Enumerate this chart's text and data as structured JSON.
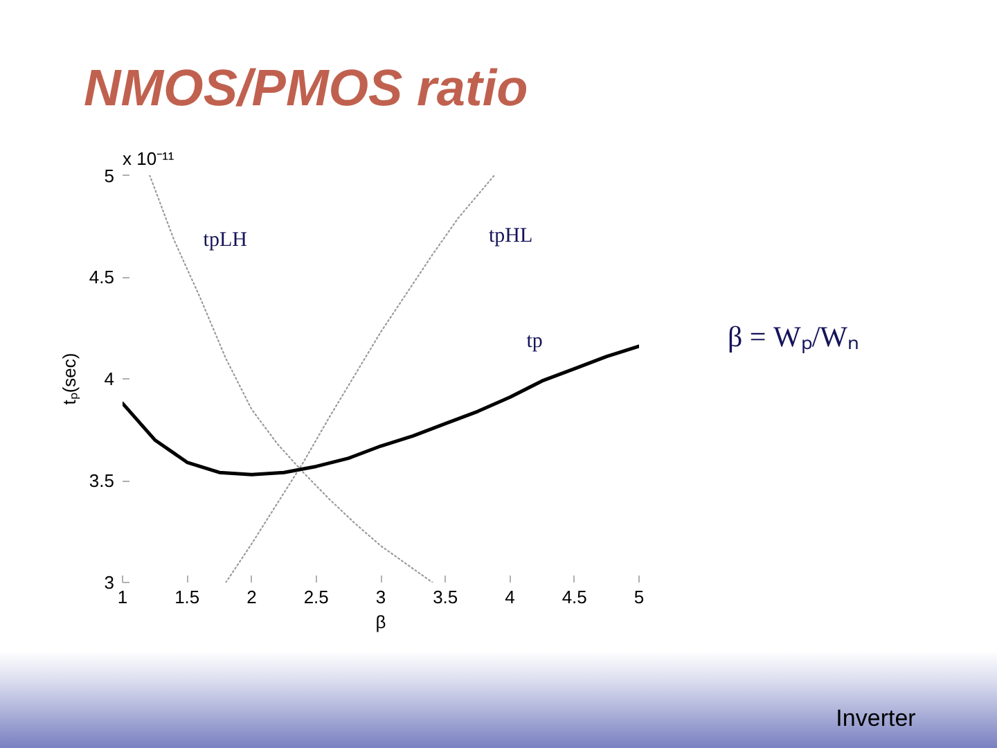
{
  "chart_data": {
    "type": "line",
    "title": "NMOS/PMOS ratio",
    "xlabel": "β",
    "ylabel": "tₚ(sec)",
    "annotations": [
      "x 10⁻¹¹",
      "β = Wₚ/Wₙ",
      "Inverter"
    ],
    "xlim": [
      1,
      5
    ],
    "ylim": [
      3,
      5
    ],
    "xticks": [
      1,
      1.5,
      2,
      2.5,
      3,
      3.5,
      4,
      4.5,
      5
    ],
    "yticks": [
      3,
      3.5,
      4,
      4.5,
      5
    ],
    "series": [
      {
        "name": "tpLH",
        "color": "#9a9a9a",
        "line_style": "dotted",
        "x": [
          1.21,
          1.4,
          1.6,
          1.8,
          2.0,
          2.2,
          2.4,
          2.6,
          2.8,
          3.0,
          3.2,
          3.4
        ],
        "values": [
          5.0,
          4.68,
          4.4,
          4.1,
          3.85,
          3.68,
          3.54,
          3.41,
          3.29,
          3.18,
          3.09,
          3.0
        ]
      },
      {
        "name": "tpHL",
        "color": "#9a9a9a",
        "line_style": "dotted",
        "x": [
          1.8,
          2.0,
          2.2,
          2.4,
          2.6,
          2.8,
          3.0,
          3.2,
          3.4,
          3.6,
          3.88
        ],
        "values": [
          3.0,
          3.19,
          3.39,
          3.59,
          3.81,
          4.02,
          4.23,
          4.42,
          4.61,
          4.79,
          5.0
        ]
      },
      {
        "name": "tp",
        "color": "#000000",
        "line_style": "solid",
        "x": [
          1,
          1.25,
          1.5,
          1.75,
          2,
          2.25,
          2.5,
          2.75,
          3,
          3.25,
          3.5,
          3.75,
          4,
          4.25,
          4.5,
          4.75,
          5
        ],
        "values": [
          3.88,
          3.7,
          3.59,
          3.54,
          3.53,
          3.54,
          3.57,
          3.61,
          3.67,
          3.72,
          3.78,
          3.84,
          3.91,
          3.99,
          4.05,
          4.11,
          4.16
        ]
      }
    ],
    "grid": false,
    "legend": false
  }
}
